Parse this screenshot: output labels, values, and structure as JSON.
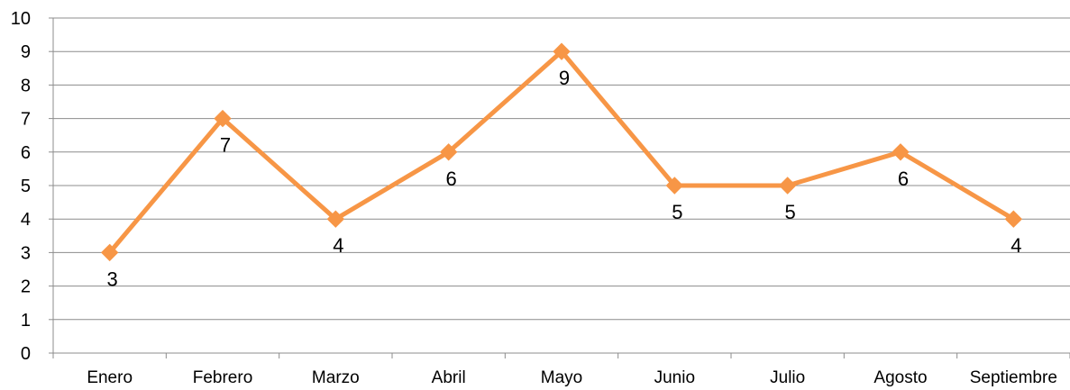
{
  "chart_data": {
    "type": "line",
    "title": "",
    "xlabel": "",
    "ylabel": "",
    "categories": [
      "Enero",
      "Febrero",
      "Marzo",
      "Abril",
      "Mayo",
      "Junio",
      "Julio",
      "Agosto",
      "Septiembre"
    ],
    "series": [
      {
        "values": [
          3,
          7,
          4,
          6,
          9,
          5,
          5,
          6,
          4
        ],
        "color": "#F79646",
        "marker": "diamond",
        "data_labels": true
      }
    ],
    "ylim": [
      0,
      10
    ],
    "yticks": [
      "0",
      "1",
      "2",
      "3",
      "4",
      "5",
      "6",
      "7",
      "8",
      "9",
      "10"
    ],
    "grid": true,
    "legend": "none"
  }
}
